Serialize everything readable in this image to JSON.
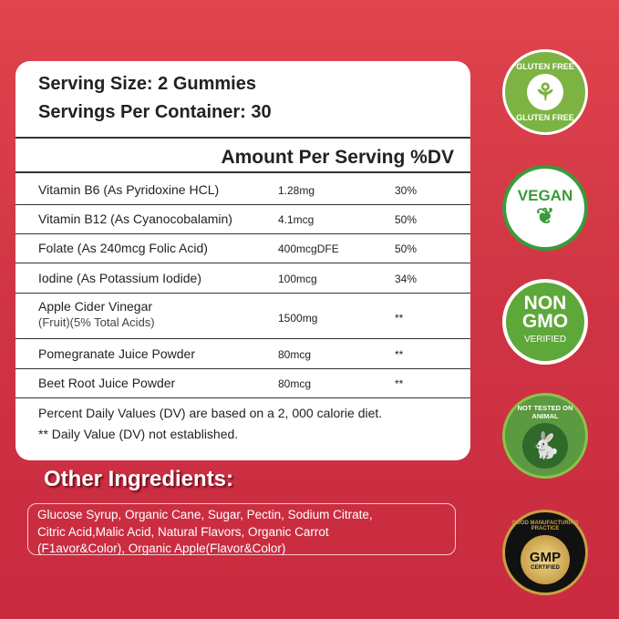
{
  "serving": {
    "size": "Serving Size: 2 Gummies",
    "per_container": "Servings Per Container: 30"
  },
  "header": "Amount Per Serving %DV",
  "rows": [
    {
      "name": "Vitamin B6 (As Pyridoxine HCL)",
      "amount": "1.28mg",
      "dv": "30%"
    },
    {
      "name": "Vitamin B12 (As Cyanocobalamin)",
      "amount": "4.1mcg",
      "dv": "50%"
    },
    {
      "name": "Folate (As 240mcg Folic Acid)",
      "amount": "400mcgDFE",
      "dv": "50%"
    },
    {
      "name": "Iodine (As Potassium Iodide)",
      "amount": "100mcg",
      "dv": "34%"
    },
    {
      "name": "Apple Cider Vinegar",
      "sub": "(Fruit)(5% Total Acids)",
      "amount": "1500mg",
      "dv": "**"
    },
    {
      "name": "Pomegranate Juice Powder",
      "amount": "80mcg",
      "dv": "**"
    },
    {
      "name": "Beet Root Juice Powder",
      "amount": "80mcg",
      "dv": "**"
    }
  ],
  "footnotes": [
    "Percent Daily Values (DV) are based on a 2, 000 calorie diet.",
    "** Daily Value (DV) not established."
  ],
  "other": {
    "title": "Other Ingredients:",
    "lines": [
      "Glucose Syrup, Organic Cane, Sugar, Pectin, Sodium Citrate,",
      "Citric Acid,Malic Acid, Natural Flavors, Organic Carrot",
      "(F1avor&Color), Organic Apple(Flavor&Color)"
    ]
  },
  "badges": {
    "gluten": {
      "top": "GLUTEN FREE",
      "bottom": "GLUTEN FREE",
      "color": "#7cb342"
    },
    "vegan": {
      "text": "VEGAN",
      "color": "#3a9a3a"
    },
    "gmo": {
      "l1": "NON",
      "l2": "GMO",
      "l3": "VERIFIED",
      "color": "#5ea83a"
    },
    "animal": {
      "text": "NOT TESTED ON ANIMAL",
      "color": "#3f7d32"
    },
    "gmp": {
      "top": "GOOD MANUFACTURING PRACTICE",
      "main": "GMP",
      "sub": "CERTIFIED",
      "color": "#c9a041"
    }
  }
}
